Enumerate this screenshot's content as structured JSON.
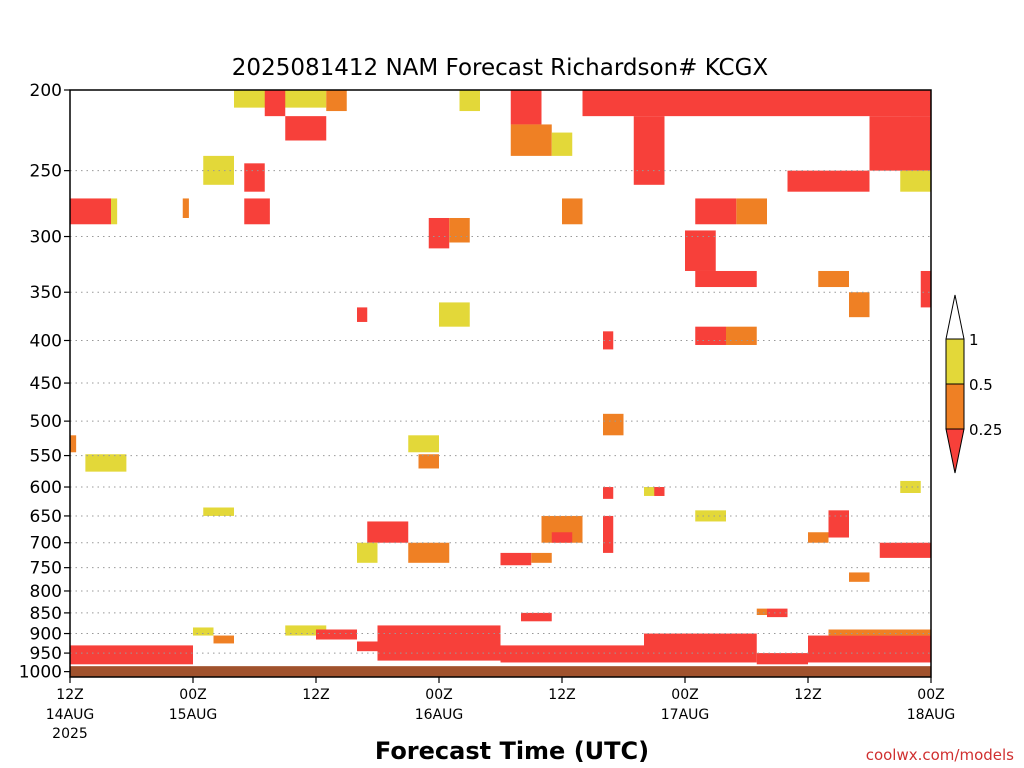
{
  "chart_data": {
    "type": "heatmap",
    "title": "2025081412 NAM Forecast Richardson# KCGX",
    "xlabel": "Forecast Time (UTC)",
    "credit": "coolwx.com/models",
    "y_scale": "log",
    "ylim": [
      1015,
      200
    ],
    "y_ticks": [
      "200",
      "250",
      "300",
      "350",
      "400",
      "450",
      "500",
      "550",
      "600",
      "650",
      "700",
      "750",
      "800",
      "850",
      "900",
      "950",
      "1000"
    ],
    "x_ticks": [
      {
        "hour": 0,
        "label": "12Z",
        "date": "14AUG",
        "year": "2025"
      },
      {
        "hour": 12,
        "label": "00Z",
        "date": "15AUG",
        "year": ""
      },
      {
        "hour": 24,
        "label": "12Z",
        "date": "",
        "year": ""
      },
      {
        "hour": 36,
        "label": "00Z",
        "date": "16AUG",
        "year": ""
      },
      {
        "hour": 48,
        "label": "12Z",
        "date": "",
        "year": ""
      },
      {
        "hour": 60,
        "label": "00Z",
        "date": "17AUG",
        "year": ""
      },
      {
        "hour": 72,
        "label": "12Z",
        "date": "",
        "year": ""
      },
      {
        "hour": 84,
        "label": "00Z",
        "date": "18AUG",
        "year": ""
      }
    ],
    "xlim": [
      0,
      84
    ],
    "grid": true,
    "surface_level_hpa": 985,
    "legend": {
      "placement": "right",
      "levels": [
        {
          "label": "1",
          "color": "#ffffff"
        },
        {
          "label": "0.5",
          "color": "#e3d839"
        },
        {
          "label": "0.25",
          "color": "#ef8024"
        },
        {
          "label": "",
          "color": "#f7403a"
        }
      ]
    },
    "colors": {
      "lt_0_25": "#f7403a",
      "0_25_to_0_5": "#ef8024",
      "0_5_to_1": "#e3d839",
      "surface": "#a0522d",
      "credit": "#d03030"
    },
    "cells_note": "",
    "cells": [
      {
        "h0": 0,
        "h1": 4,
        "p0": 270,
        "p1": 290,
        "c": "lt_0_25"
      },
      {
        "h0": 4,
        "h1": 4.6,
        "p0": 270,
        "p1": 290,
        "c": "0_5_to_1"
      },
      {
        "h0": 0,
        "h1": 0.6,
        "p0": 520,
        "p1": 545,
        "c": "0_25_to_0_5"
      },
      {
        "h0": 1.5,
        "h1": 5.5,
        "p0": 548,
        "p1": 575,
        "c": "0_5_to_1"
      },
      {
        "h0": 11,
        "h1": 11.6,
        "p0": 270,
        "p1": 285,
        "c": "0_25_to_0_5"
      },
      {
        "h0": 13,
        "h1": 16,
        "p0": 635,
        "p1": 650,
        "c": "0_5_to_1"
      },
      {
        "h0": 16,
        "h1": 25,
        "p0": 200,
        "p1": 210,
        "c": "0_5_to_1"
      },
      {
        "h0": 19,
        "h1": 21,
        "p0": 200,
        "p1": 215,
        "c": "lt_0_25"
      },
      {
        "h0": 21,
        "h1": 25,
        "p0": 215,
        "p1": 230,
        "c": "lt_0_25"
      },
      {
        "h0": 17,
        "h1": 19,
        "p0": 245,
        "p1": 265,
        "c": "lt_0_25"
      },
      {
        "h0": 17,
        "h1": 19.5,
        "p0": 270,
        "p1": 290,
        "c": "lt_0_25"
      },
      {
        "h0": 25,
        "h1": 27,
        "p0": 200,
        "p1": 212,
        "c": "0_25_to_0_5"
      },
      {
        "h0": 13,
        "h1": 16,
        "p0": 240,
        "p1": 260,
        "c": "0_5_to_1"
      },
      {
        "h0": 28,
        "h1": 29,
        "p0": 365,
        "p1": 380,
        "c": "lt_0_25"
      },
      {
        "h0": 29,
        "h1": 33,
        "p0": 660,
        "p1": 700,
        "c": "lt_0_25"
      },
      {
        "h0": 28,
        "h1": 30,
        "p0": 700,
        "p1": 740,
        "c": "0_5_to_1"
      },
      {
        "h0": 33,
        "h1": 37,
        "p0": 700,
        "p1": 740,
        "c": "0_25_to_0_5"
      },
      {
        "h0": 35,
        "h1": 37,
        "p0": 285,
        "p1": 310,
        "c": "lt_0_25"
      },
      {
        "h0": 37,
        "h1": 39,
        "p0": 285,
        "p1": 305,
        "c": "0_25_to_0_5"
      },
      {
        "h0": 36,
        "h1": 39,
        "p0": 360,
        "p1": 385,
        "c": "0_5_to_1"
      },
      {
        "h0": 33,
        "h1": 36,
        "p0": 520,
        "p1": 545,
        "c": "0_5_to_1"
      },
      {
        "h0": 34,
        "h1": 36,
        "p0": 548,
        "p1": 570,
        "c": "0_25_to_0_5"
      },
      {
        "h0": 38,
        "h1": 40,
        "p0": 200,
        "p1": 212,
        "c": "0_5_to_1"
      },
      {
        "h0": 43,
        "h1": 46,
        "p0": 200,
        "p1": 220,
        "c": "lt_0_25"
      },
      {
        "h0": 43,
        "h1": 47,
        "p0": 220,
        "p1": 240,
        "c": "0_25_to_0_5"
      },
      {
        "h0": 47,
        "h1": 49,
        "p0": 225,
        "p1": 240,
        "c": "0_5_to_1"
      },
      {
        "h0": 48,
        "h1": 50,
        "p0": 270,
        "p1": 290,
        "c": "0_25_to_0_5"
      },
      {
        "h0": 50,
        "h1": 84,
        "p0": 200,
        "p1": 215,
        "c": "lt_0_25"
      },
      {
        "h0": 55,
        "h1": 58,
        "p0": 215,
        "p1": 260,
        "c": "lt_0_25"
      },
      {
        "h0": 60,
        "h1": 63,
        "p0": 295,
        "p1": 330,
        "c": "lt_0_25"
      },
      {
        "h0": 61,
        "h1": 67,
        "p0": 330,
        "p1": 345,
        "c": "lt_0_25"
      },
      {
        "h0": 61,
        "h1": 64,
        "p0": 385,
        "p1": 405,
        "c": "lt_0_25"
      },
      {
        "h0": 64,
        "h1": 67,
        "p0": 385,
        "p1": 405,
        "c": "0_25_to_0_5"
      },
      {
        "h0": 65,
        "h1": 68,
        "p0": 270,
        "p1": 290,
        "c": "0_25_to_0_5"
      },
      {
        "h0": 61,
        "h1": 65,
        "p0": 270,
        "p1": 290,
        "c": "lt_0_25"
      },
      {
        "h0": 70,
        "h1": 78,
        "p0": 250,
        "p1": 265,
        "c": "lt_0_25"
      },
      {
        "h0": 73,
        "h1": 76,
        "p0": 330,
        "p1": 345,
        "c": "0_25_to_0_5"
      },
      {
        "h0": 76,
        "h1": 78,
        "p0": 350,
        "p1": 375,
        "c": "0_25_to_0_5"
      },
      {
        "h0": 78,
        "h1": 84,
        "p0": 215,
        "p1": 250,
        "c": "lt_0_25"
      },
      {
        "h0": 82,
        "h1": 84,
        "p0": 200,
        "p1": 215,
        "c": "lt_0_25"
      },
      {
        "h0": 81,
        "h1": 84,
        "p0": 250,
        "p1": 265,
        "c": "0_5_to_1"
      },
      {
        "h0": 83,
        "h1": 84,
        "p0": 330,
        "p1": 365,
        "c": "lt_0_25"
      },
      {
        "h0": 52,
        "h1": 53,
        "p0": 390,
        "p1": 410,
        "c": "lt_0_25"
      },
      {
        "h0": 52,
        "h1": 54,
        "p0": 490,
        "p1": 520,
        "c": "0_25_to_0_5"
      },
      {
        "h0": 52,
        "h1": 53,
        "p0": 600,
        "p1": 620,
        "c": "lt_0_25"
      },
      {
        "h0": 46,
        "h1": 50,
        "p0": 650,
        "p1": 700,
        "c": "0_25_to_0_5"
      },
      {
        "h0": 47,
        "h1": 49,
        "p0": 680,
        "p1": 700,
        "c": "lt_0_25"
      },
      {
        "h0": 52,
        "h1": 53,
        "p0": 650,
        "p1": 720,
        "c": "lt_0_25"
      },
      {
        "h0": 56,
        "h1": 58,
        "p0": 600,
        "p1": 615,
        "c": "0_5_to_1"
      },
      {
        "h0": 57,
        "h1": 58,
        "p0": 600,
        "p1": 615,
        "c": "lt_0_25"
      },
      {
        "h0": 42,
        "h1": 45,
        "p0": 720,
        "p1": 745,
        "c": "lt_0_25"
      },
      {
        "h0": 45,
        "h1": 47,
        "p0": 720,
        "p1": 740,
        "c": "0_25_to_0_5"
      },
      {
        "h0": 61,
        "h1": 64,
        "p0": 640,
        "p1": 660,
        "c": "0_5_to_1"
      },
      {
        "h0": 68,
        "h1": 70,
        "p0": 840,
        "p1": 860,
        "c": "lt_0_25"
      },
      {
        "h0": 67,
        "h1": 68,
        "p0": 840,
        "p1": 855,
        "c": "0_25_to_0_5"
      },
      {
        "h0": 74,
        "h1": 76,
        "p0": 640,
        "p1": 690,
        "c": "lt_0_25"
      },
      {
        "h0": 72,
        "h1": 74,
        "p0": 680,
        "p1": 700,
        "c": "0_25_to_0_5"
      },
      {
        "h0": 79,
        "h1": 84,
        "p0": 700,
        "p1": 730,
        "c": "lt_0_25"
      },
      {
        "h0": 76,
        "h1": 78,
        "p0": 760,
        "p1": 780,
        "c": "0_25_to_0_5"
      },
      {
        "h0": 81,
        "h1": 83,
        "p0": 590,
        "p1": 610,
        "c": "0_5_to_1"
      },
      {
        "h0": 12,
        "h1": 14,
        "p0": 885,
        "p1": 905,
        "c": "0_5_to_1"
      },
      {
        "h0": 14,
        "h1": 16,
        "p0": 905,
        "p1": 925,
        "c": "0_25_to_0_5"
      },
      {
        "h0": 21,
        "h1": 25,
        "p0": 880,
        "p1": 905,
        "c": "0_5_to_1"
      },
      {
        "h0": 24,
        "h1": 28,
        "p0": 890,
        "p1": 915,
        "c": "lt_0_25"
      },
      {
        "h0": 28,
        "h1": 30,
        "p0": 920,
        "p1": 945,
        "c": "lt_0_25"
      },
      {
        "h0": 30,
        "h1": 42,
        "p0": 880,
        "p1": 970,
        "c": "lt_0_25"
      },
      {
        "h0": 42,
        "h1": 56,
        "p0": 930,
        "p1": 975,
        "c": "lt_0_25"
      },
      {
        "h0": 44,
        "h1": 47,
        "p0": 850,
        "p1": 870,
        "c": "lt_0_25"
      },
      {
        "h0": 56,
        "h1": 67,
        "p0": 900,
        "p1": 975,
        "c": "lt_0_25"
      },
      {
        "h0": 72,
        "h1": 84,
        "p0": 905,
        "p1": 975,
        "c": "lt_0_25"
      },
      {
        "h0": 74,
        "h1": 84,
        "p0": 890,
        "p1": 905,
        "c": "0_25_to_0_5"
      },
      {
        "h0": 0,
        "h1": 12,
        "p0": 930,
        "p1": 980,
        "c": "lt_0_25"
      },
      {
        "h0": 67,
        "h1": 72,
        "p0": 950,
        "p1": 980,
        "c": "lt_0_25"
      }
    ]
  }
}
